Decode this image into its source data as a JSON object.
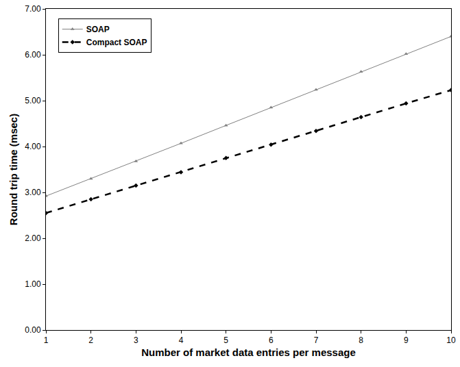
{
  "chart_data": {
    "type": "line",
    "x_label": "Number of market data entries per message",
    "y_label": "Round trip time (msec)",
    "x": [
      1,
      2,
      3,
      4,
      5,
      6,
      7,
      8,
      9,
      10
    ],
    "series": [
      {
        "name": "SOAP",
        "color": "#808080",
        "marker": "triangle",
        "line_style": "solid",
        "values": [
          2.92,
          3.3,
          3.68,
          4.07,
          4.46,
          4.85,
          5.24,
          5.63,
          6.02,
          6.4
        ]
      },
      {
        "name": "Compact SOAP",
        "color": "#000000",
        "marker": "diamond",
        "line_style": "dashed",
        "values": [
          2.55,
          2.85,
          3.15,
          3.44,
          3.75,
          4.04,
          4.34,
          4.64,
          4.94,
          5.23
        ]
      }
    ],
    "xlim": [
      1,
      10
    ],
    "xticks": [
      1,
      2,
      3,
      4,
      5,
      6,
      7,
      8,
      9,
      10
    ],
    "ylim": [
      0,
      7
    ],
    "yticks": [
      {
        "value": 0,
        "label": "0.00"
      },
      {
        "value": 1,
        "label": "1.00"
      },
      {
        "value": 2,
        "label": "2.00"
      },
      {
        "value": 3,
        "label": "3.00"
      },
      {
        "value": 4,
        "label": "4.00"
      },
      {
        "value": 5,
        "label": "5.00"
      },
      {
        "value": 6,
        "label": "6.00"
      },
      {
        "value": 7,
        "label": "7.00"
      }
    ],
    "grid": false,
    "legend": "top-left"
  }
}
